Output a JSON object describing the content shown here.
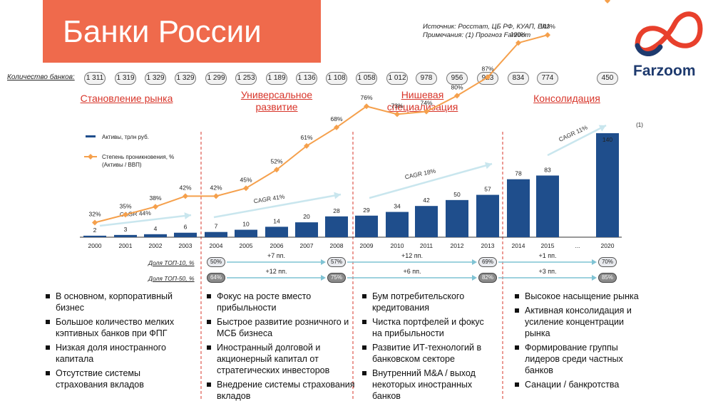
{
  "header": {
    "title": "Банки России",
    "source_line1": "Источник: Росстат, ЦБ РФ, КУАП, EIU",
    "source_line2": "Примечания: (1) Прогноз Farzoom",
    "logo_text": "Farzoom"
  },
  "banks": {
    "label": "Количество банков:",
    "values": [
      "1 311",
      "1 319",
      "1 329",
      "1 329",
      "1 299",
      "1 253",
      "1 189",
      "1 136",
      "1 108",
      "1 058",
      "1 012",
      "978",
      "956",
      "923",
      "834",
      "774",
      "450"
    ]
  },
  "phases": [
    {
      "line1": "Становление рынка",
      "line2": ""
    },
    {
      "line1": "Универсальное",
      "line2": "развитие"
    },
    {
      "line1": "Нишевая",
      "line2": "специализация"
    },
    {
      "line1": "Консолидация",
      "line2": ""
    }
  ],
  "colors": {
    "accent": "#ef6a4c",
    "bar": "#1f4e8c",
    "line": "#f5a04c",
    "phase_divider": "#d8352a",
    "cagr_arrow": "#c9e6ee",
    "share_arrow": "#7fc3d4"
  },
  "chart_data": {
    "type": "bar",
    "categories": [
      "2000",
      "2001",
      "2002",
      "2003",
      "2004",
      "2005",
      "2006",
      "2007",
      "2008",
      "2009",
      "2010",
      "2011",
      "2012",
      "2013",
      "2014",
      "2015",
      "...",
      "2020"
    ],
    "series": [
      {
        "name": "Активы, трлн руб.",
        "type": "bar",
        "values": [
          2,
          3,
          4,
          6,
          7,
          10,
          14,
          20,
          28,
          29,
          34,
          42,
          50,
          57,
          78,
          83,
          null,
          140
        ]
      },
      {
        "name": "Степень проникновения, % (Активы / ВВП)",
        "type": "line",
        "values": [
          32,
          35,
          38,
          42,
          42,
          45,
          52,
          61,
          68,
          76,
          73,
          74,
          80,
          87,
          100,
          103,
          null,
          116
        ]
      }
    ],
    "legend": {
      "bar": "Активы, трлн руб.",
      "line1": "Степень проникновения, %",
      "line2": "(Активы / ВВП)"
    },
    "cagr_labels": [
      "CAGR 44%",
      "CAGR 41%",
      "CAGR 18%",
      "CAGR 11%"
    ],
    "footnote": "(1)",
    "ylim": [
      0,
      140
    ]
  },
  "shares": {
    "top10": {
      "label": "Доля ТОП-10, %",
      "values": [
        "50%",
        "57%",
        "69%",
        "70%"
      ],
      "deltas": [
        "+7 пп.",
        "+12 пп.",
        "+1 пп."
      ]
    },
    "top50": {
      "label": "Доля ТОП-50, %",
      "values": [
        "64%",
        "75%",
        "82%",
        "85%"
      ],
      "deltas": [
        "+12 пп.",
        "+6 пп.",
        "+3 пп."
      ]
    }
  },
  "bullets": [
    [
      "В основном, корпоративный бизнес",
      "Большое количество мелких кэптивных банков при ФПГ",
      "Низкая доля иностранного капитала",
      "Отсутствие системы страхования вкладов"
    ],
    [
      "Фокус на росте вместо прибыльности",
      "Быстрое развитие розничного и МСБ бизнеса",
      "Иностранный долговой и акционерный капитал от стратегических инвесторов",
      "Внедрение системы страхования вкладов"
    ],
    [
      "Бум потребительского кредитования",
      "Чистка портфелей и фокус на прибыльности",
      "Развитие ИТ-технологий в банковском секторе",
      "Внутренний M&A / выход некоторых иностранных банков"
    ],
    [
      "Высокое насыщение рынка",
      "Активная консолидация и усиление концентрации рынка",
      "Формирование группы лидеров среди частных банков",
      "Санации / банкротства"
    ]
  ]
}
